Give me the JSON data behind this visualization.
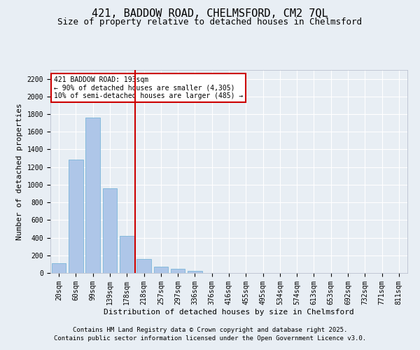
{
  "title": "421, BADDOW ROAD, CHELMSFORD, CM2 7QL",
  "subtitle": "Size of property relative to detached houses in Chelmsford",
  "xlabel": "Distribution of detached houses by size in Chelmsford",
  "ylabel": "Number of detached properties",
  "categories": [
    "20sqm",
    "60sqm",
    "99sqm",
    "139sqm",
    "178sqm",
    "218sqm",
    "257sqm",
    "297sqm",
    "336sqm",
    "376sqm",
    "416sqm",
    "455sqm",
    "495sqm",
    "534sqm",
    "574sqm",
    "613sqm",
    "653sqm",
    "692sqm",
    "732sqm",
    "771sqm",
    "811sqm"
  ],
  "values": [
    110,
    1285,
    1760,
    960,
    420,
    155,
    70,
    45,
    20,
    0,
    0,
    0,
    0,
    0,
    0,
    0,
    0,
    0,
    0,
    0,
    0
  ],
  "bar_color": "#aec6e8",
  "bar_edge_color": "#6aaed6",
  "vline_x": 4.5,
  "vline_color": "#cc0000",
  "annotation_text": "421 BADDOW ROAD: 193sqm\n← 90% of detached houses are smaller (4,305)\n10% of semi-detached houses are larger (485) →",
  "annotation_box_color": "#ffffff",
  "annotation_box_edge": "#cc0000",
  "ylim": [
    0,
    2300
  ],
  "yticks": [
    0,
    200,
    400,
    600,
    800,
    1000,
    1200,
    1400,
    1600,
    1800,
    2000,
    2200
  ],
  "background_color": "#e8eef4",
  "axes_background": "#e8eef4",
  "grid_color": "#ffffff",
  "footer_line1": "Contains HM Land Registry data © Crown copyright and database right 2025.",
  "footer_line2": "Contains public sector information licensed under the Open Government Licence v3.0.",
  "title_fontsize": 11,
  "subtitle_fontsize": 9,
  "label_fontsize": 8,
  "tick_fontsize": 7,
  "footer_fontsize": 6.5
}
